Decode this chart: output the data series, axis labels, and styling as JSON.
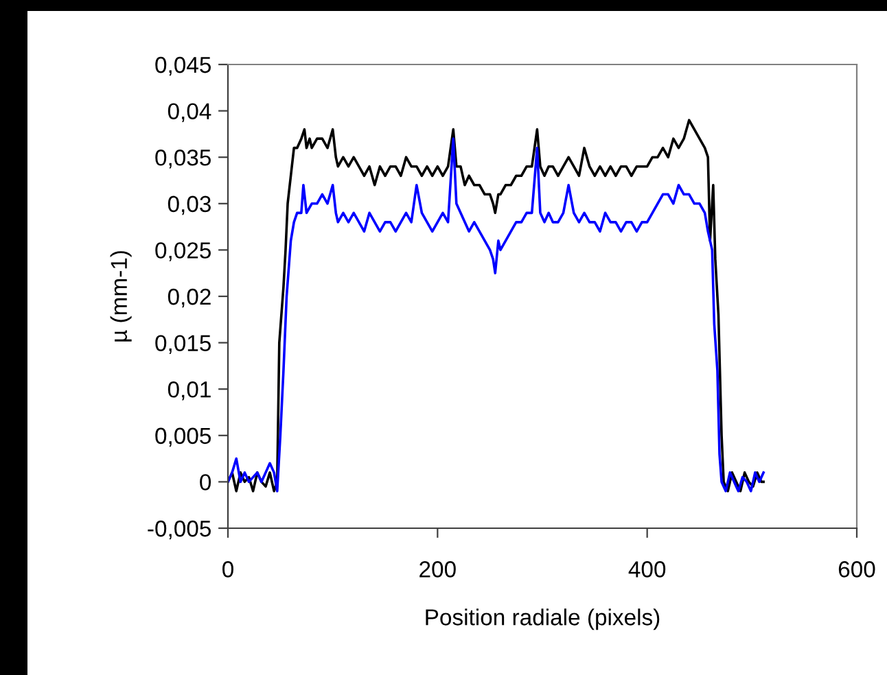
{
  "chart_data": {
    "type": "line",
    "xlabel": "Position radiale (pixels)",
    "ylabel": "µ (mm-1)",
    "xlim": [
      0,
      600
    ],
    "xticks": [
      0,
      200,
      400,
      600
    ],
    "ylim": [
      -0.005,
      0.045
    ],
    "yticks": [
      {
        "value": -0.005,
        "label": "-0,005"
      },
      {
        "value": 0,
        "label": "0"
      },
      {
        "value": 0.005,
        "label": "0,005"
      },
      {
        "value": 0.01,
        "label": "0,01"
      },
      {
        "value": 0.015,
        "label": "0,015"
      },
      {
        "value": 0.02,
        "label": "0,02"
      },
      {
        "value": 0.025,
        "label": "0,025"
      },
      {
        "value": 0.03,
        "label": "0,03"
      },
      {
        "value": 0.035,
        "label": "0,035"
      },
      {
        "value": 0.04,
        "label": "0,04"
      },
      {
        "value": 0.045,
        "label": "0,045"
      }
    ],
    "grid": false,
    "legend": false,
    "marker": "none",
    "line_style": "solid",
    "series": [
      {
        "color": "#000000",
        "x": [
          0,
          4,
          8,
          12,
          16,
          20,
          24,
          28,
          32,
          36,
          40,
          44,
          47,
          49,
          53,
          55,
          57,
          60,
          63,
          66,
          70,
          73,
          75,
          78,
          80,
          85,
          90,
          95,
          100,
          103,
          105,
          110,
          115,
          120,
          125,
          130,
          135,
          140,
          145,
          150,
          155,
          160,
          165,
          170,
          175,
          180,
          185,
          190,
          195,
          200,
          205,
          210,
          215,
          218,
          222,
          226,
          230,
          235,
          240,
          245,
          250,
          253,
          255,
          258,
          260,
          265,
          270,
          275,
          280,
          285,
          290,
          295,
          298,
          302,
          306,
          310,
          315,
          320,
          325,
          330,
          335,
          340,
          345,
          350,
          355,
          360,
          365,
          370,
          375,
          380,
          385,
          390,
          395,
          400,
          405,
          410,
          415,
          420,
          425,
          430,
          435,
          440,
          445,
          450,
          455,
          458,
          460,
          463,
          465,
          468,
          471,
          473,
          477,
          481,
          485,
          489,
          493,
          497,
          501,
          505,
          509,
          511
        ],
        "values": [
          0,
          0.001,
          -0.001,
          0.001,
          0,
          0.0005,
          -0.001,
          0.001,
          0,
          -0.0005,
          0.001,
          -0.001,
          0,
          0.015,
          0.021,
          0.025,
          0.03,
          0.033,
          0.036,
          0.036,
          0.037,
          0.038,
          0.036,
          0.037,
          0.036,
          0.037,
          0.037,
          0.036,
          0.038,
          0.035,
          0.034,
          0.035,
          0.034,
          0.035,
          0.034,
          0.033,
          0.034,
          0.032,
          0.034,
          0.033,
          0.034,
          0.034,
          0.033,
          0.035,
          0.034,
          0.034,
          0.033,
          0.034,
          0.033,
          0.034,
          0.033,
          0.034,
          0.038,
          0.034,
          0.034,
          0.032,
          0.033,
          0.032,
          0.032,
          0.031,
          0.031,
          0.03,
          0.029,
          0.031,
          0.031,
          0.032,
          0.032,
          0.033,
          0.033,
          0.034,
          0.034,
          0.038,
          0.034,
          0.033,
          0.034,
          0.034,
          0.033,
          0.034,
          0.035,
          0.034,
          0.033,
          0.036,
          0.034,
          0.033,
          0.034,
          0.033,
          0.034,
          0.033,
          0.034,
          0.034,
          0.033,
          0.034,
          0.034,
          0.034,
          0.035,
          0.035,
          0.036,
          0.035,
          0.037,
          0.036,
          0.037,
          0.039,
          0.038,
          0.037,
          0.036,
          0.035,
          0.026,
          0.032,
          0.024,
          0.018,
          0.005,
          0,
          -0.001,
          0.001,
          0,
          -0.001,
          0.001,
          0,
          -0.0005,
          0.001,
          0,
          0
        ]
      },
      {
        "color": "#0000ff",
        "x": [
          0,
          4,
          8,
          12,
          16,
          20,
          24,
          28,
          32,
          36,
          40,
          44,
          47,
          50,
          53,
          56,
          60,
          63,
          66,
          70,
          72,
          75,
          80,
          85,
          90,
          95,
          100,
          103,
          105,
          110,
          115,
          120,
          125,
          130,
          135,
          140,
          145,
          150,
          155,
          160,
          165,
          170,
          175,
          180,
          185,
          190,
          195,
          200,
          205,
          210,
          215,
          218,
          222,
          226,
          230,
          235,
          240,
          245,
          250,
          253,
          255,
          258,
          260,
          265,
          270,
          275,
          280,
          285,
          290,
          295,
          298,
          302,
          306,
          310,
          315,
          320,
          325,
          330,
          335,
          340,
          345,
          350,
          355,
          360,
          365,
          370,
          375,
          380,
          385,
          390,
          395,
          400,
          405,
          410,
          415,
          420,
          425,
          430,
          435,
          440,
          445,
          450,
          455,
          458,
          462,
          464,
          467,
          469,
          471,
          475,
          479,
          483,
          487,
          491,
          495,
          499,
          503,
          507,
          511
        ],
        "values": [
          0,
          0.001,
          0.0025,
          0,
          0.001,
          0,
          0.0005,
          0.001,
          0,
          0.001,
          0.002,
          0.001,
          -0.001,
          0.005,
          0.012,
          0.02,
          0.026,
          0.028,
          0.029,
          0.029,
          0.032,
          0.029,
          0.03,
          0.03,
          0.031,
          0.03,
          0.032,
          0.029,
          0.028,
          0.029,
          0.028,
          0.029,
          0.028,
          0.027,
          0.029,
          0.028,
          0.027,
          0.028,
          0.028,
          0.027,
          0.028,
          0.029,
          0.028,
          0.032,
          0.029,
          0.028,
          0.027,
          0.028,
          0.029,
          0.028,
          0.037,
          0.03,
          0.029,
          0.028,
          0.027,
          0.028,
          0.027,
          0.026,
          0.025,
          0.024,
          0.0225,
          0.026,
          0.025,
          0.026,
          0.027,
          0.028,
          0.028,
          0.029,
          0.029,
          0.036,
          0.029,
          0.028,
          0.029,
          0.028,
          0.028,
          0.029,
          0.032,
          0.029,
          0.028,
          0.029,
          0.028,
          0.028,
          0.027,
          0.029,
          0.028,
          0.028,
          0.027,
          0.028,
          0.028,
          0.027,
          0.028,
          0.028,
          0.029,
          0.03,
          0.031,
          0.031,
          0.03,
          0.032,
          0.031,
          0.031,
          0.03,
          0.03,
          0.029,
          0.027,
          0.025,
          0.017,
          0.012,
          0.003,
          0,
          -0.001,
          0.001,
          0,
          -0.001,
          0.0005,
          0,
          -0.001,
          0.001,
          0,
          0.001
        ]
      }
    ]
  }
}
